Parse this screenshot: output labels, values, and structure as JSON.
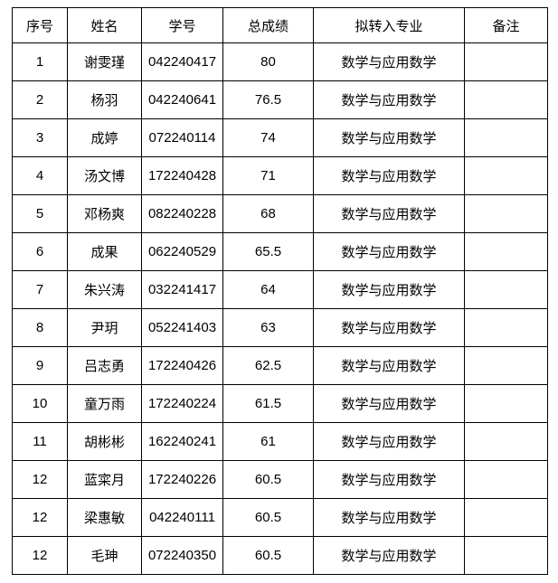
{
  "table": {
    "columns": [
      "序号",
      "姓名",
      "学号",
      "总成绩",
      "拟转入专业",
      "备注"
    ],
    "rows": [
      [
        "1",
        "谢雯瑾",
        "042240417",
        "80",
        "数学与应用数学",
        ""
      ],
      [
        "2",
        "杨羽",
        "042240641",
        "76.5",
        "数学与应用数学",
        ""
      ],
      [
        "3",
        "成婷",
        "072240114",
        "74",
        "数学与应用数学",
        ""
      ],
      [
        "4",
        "汤文博",
        "172240428",
        "71",
        "数学与应用数学",
        ""
      ],
      [
        "5",
        "邓杨爽",
        "082240228",
        "68",
        "数学与应用数学",
        ""
      ],
      [
        "6",
        "成果",
        "062240529",
        "65.5",
        "数学与应用数学",
        ""
      ],
      [
        "7",
        "朱兴涛",
        "032241417",
        "64",
        "数学与应用数学",
        ""
      ],
      [
        "8",
        "尹玥",
        "052241403",
        "63",
        "数学与应用数学",
        ""
      ],
      [
        "9",
        "吕志勇",
        "172240426",
        "62.5",
        "数学与应用数学",
        ""
      ],
      [
        "10",
        "童万雨",
        "172240224",
        "61.5",
        "数学与应用数学",
        ""
      ],
      [
        "11",
        "胡彬彬",
        "162240241",
        "61",
        "数学与应用数学",
        ""
      ],
      [
        "12",
        "蓝寀月",
        "172240226",
        "60.5",
        "数学与应用数学",
        ""
      ],
      [
        "12",
        "梁惠敏",
        "042240111",
        "60.5",
        "数学与应用数学",
        ""
      ],
      [
        "12",
        "毛珅",
        "072240350",
        "60.5",
        "数学与应用数学",
        ""
      ]
    ],
    "colors": {
      "border": "#000000",
      "text": "#000000",
      "background": "#ffffff"
    }
  }
}
